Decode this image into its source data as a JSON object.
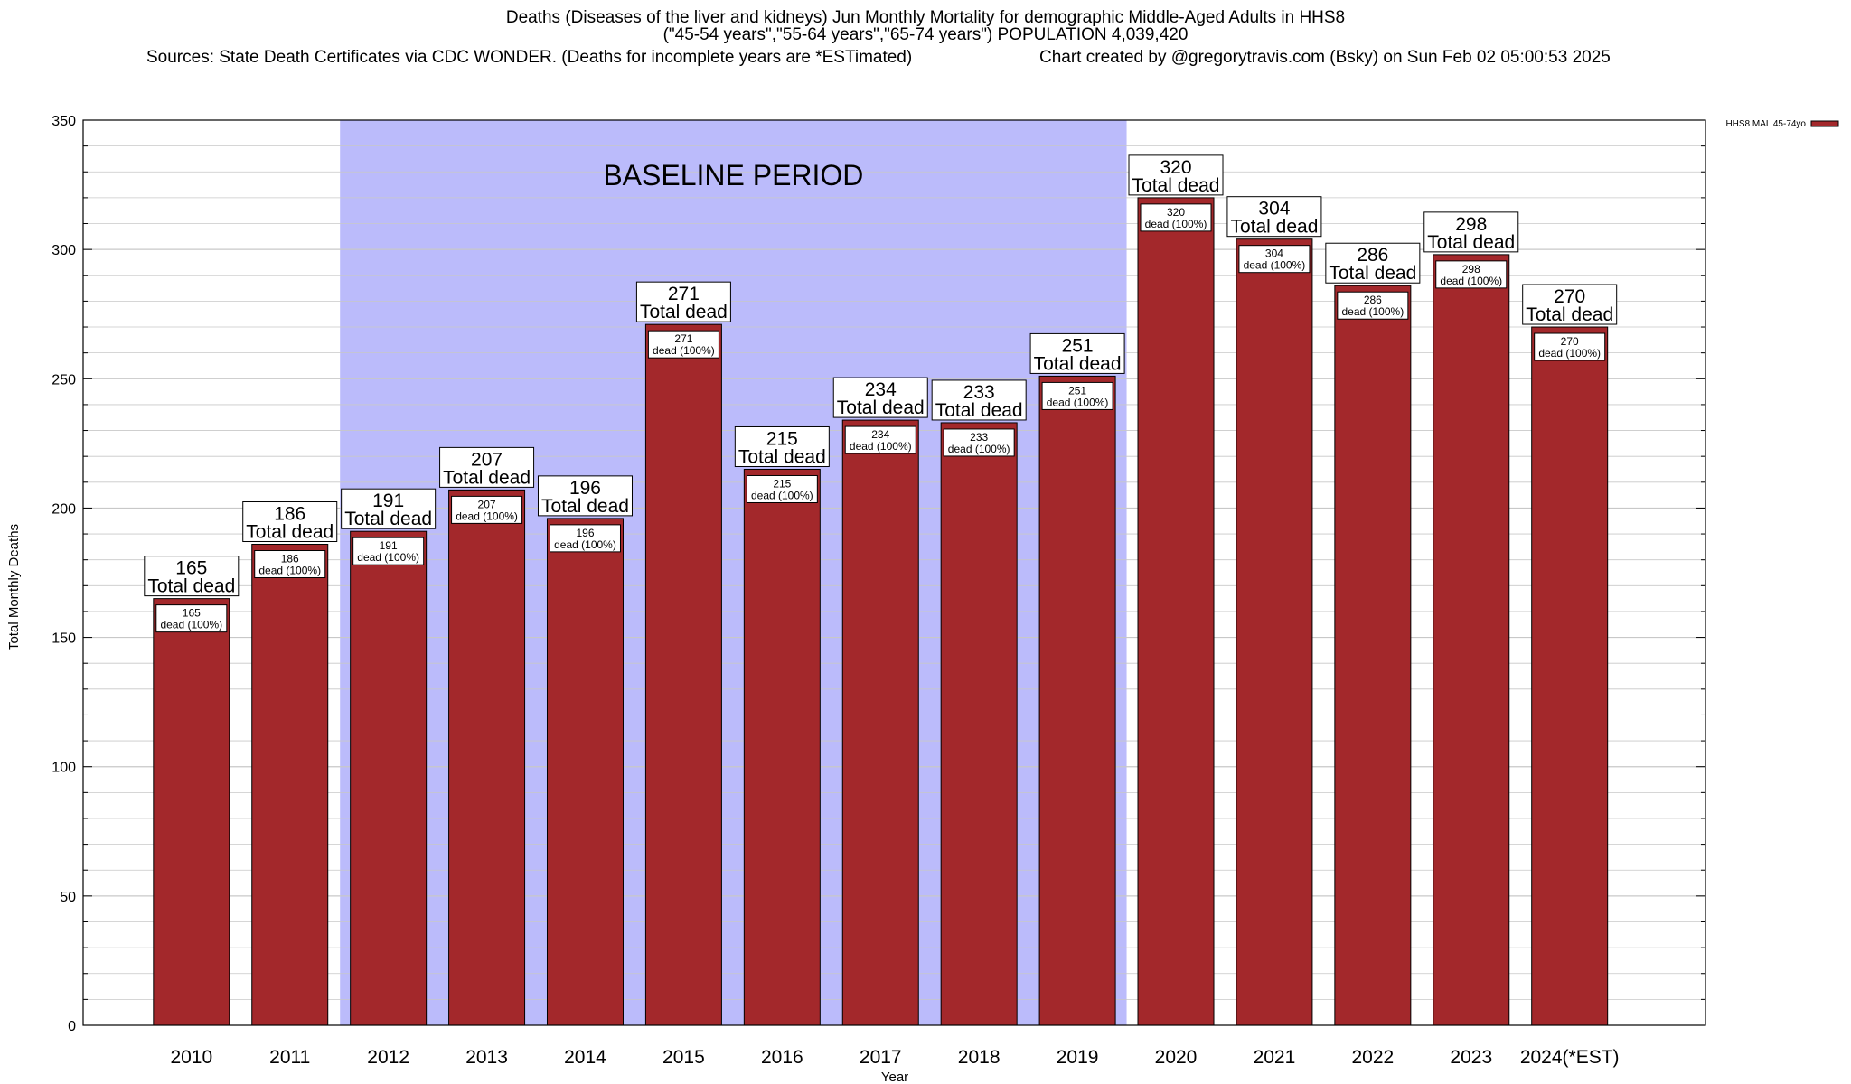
{
  "title_lines": [
    "Deaths (Diseases of the liver and kidneys) Jun Monthly Mortality for demographic Middle-Aged Adults in HHS8",
    "(\"45-54 years\",\"55-64 years\",\"65-74 years\") POPULATION 4,039,420"
  ],
  "sources_left": "Sources: State Death Certificates via CDC WONDER. (Deaths for incomplete years are *ESTimated)",
  "sources_right": "Chart created by @gregorytravis.com (Bsky) on Sun Feb 02 05:00:53 2025",
  "colors": {
    "bar": "#a3282b",
    "baseline_band": "#bbbbfb",
    "grid": "#c8c8c8"
  },
  "chart_data": {
    "type": "bar",
    "categories": [
      "2010",
      "2011",
      "2012",
      "2013",
      "2014",
      "2015",
      "2016",
      "2017",
      "2018",
      "2019",
      "2020",
      "2021",
      "2022",
      "2023",
      "2024(*EST)"
    ],
    "series": [
      {
        "name": "HHS8 MAL 45-74yo",
        "values": [
          165,
          186,
          191,
          207,
          196,
          271,
          215,
          234,
          233,
          251,
          320,
          304,
          286,
          298,
          270
        ]
      }
    ],
    "xlabel": "Year",
    "ylabel": "Total Monthly Deaths",
    "ylim": [
      0,
      350
    ],
    "yticks": [
      0,
      50,
      100,
      150,
      200,
      250,
      300,
      350
    ],
    "grid": true,
    "legend_position": "top-right",
    "baseline_period": {
      "label": "BASELINE PERIOD",
      "from": "2012",
      "to": "2019"
    },
    "data_label_total": "Total dead",
    "data_label_part": "dead (100%)"
  }
}
